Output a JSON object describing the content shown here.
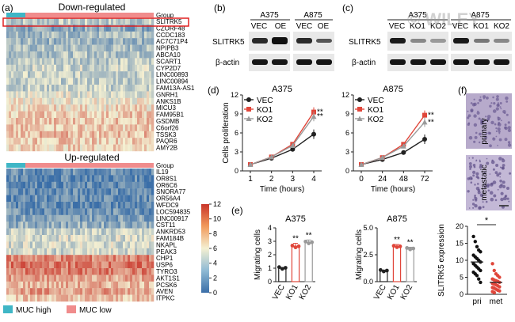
{
  "panels": {
    "a": {
      "letter": "(a)"
    },
    "b": {
      "letter": "(b)"
    },
    "c": {
      "letter": "(c)"
    },
    "d": {
      "letter": "(d)"
    },
    "e": {
      "letter": "(e)"
    },
    "f": {
      "letter": "(f)"
    }
  },
  "watermark": "© WILEY",
  "heatmap": {
    "down_title": "Down-regulated",
    "up_title": "Up-regulated",
    "group_label": "Group",
    "down_genes": [
      "SLITRK5",
      "CZORF48",
      "CCDC183",
      "AC7C71P4",
      "NPIPB3",
      "ABCA10",
      "SCART1",
      "CYP2D7",
      "LINC00893",
      "LINC00894",
      "FAM13A-AS1",
      "GNRH1",
      "ANKS1B",
      "MICU3",
      "FAM95B1",
      "GSDMB",
      "C6orf26",
      "TSSK3",
      "PAQR6",
      "AMY2B"
    ],
    "up_genes": [
      "IL19",
      "OR8S1",
      "OR6C6",
      "SNORA77",
      "OR56A4",
      "WFDC9",
      "LOC594835",
      "LINC00917",
      "CST11",
      "ANKRD53",
      "FAM184B",
      "NKAPL",
      "PEAK3",
      "CHP1",
      "USP6",
      "TYRO3",
      "AKT1S1",
      "PCSK6",
      "AVEN",
      "ITPKC"
    ],
    "colorbar_ticks": [
      "12",
      "10",
      "8",
      "6",
      "4",
      "2",
      "0"
    ],
    "legend": [
      {
        "label": "MUC high",
        "color": "#3fb6c6"
      },
      {
        "label": "MUC low",
        "color": "#f08c8c"
      }
    ],
    "colors": {
      "low": "#3a6ea8",
      "mid": "#f4f0d2",
      "high": "#c9352a"
    }
  },
  "blots": {
    "b": {
      "cells": [
        "A375",
        "A875"
      ],
      "lanes": [
        "VEC",
        "OE",
        "VEC",
        "OE"
      ],
      "rows": [
        "SLITRK5",
        "β-actin"
      ]
    },
    "c": {
      "cells": [
        "A375",
        "A875"
      ],
      "lanes": [
        "VEC",
        "KO1",
        "KO2",
        "VEC",
        "KO1",
        "KO2"
      ],
      "rows": [
        "SLITRK5",
        "β-actin"
      ]
    }
  },
  "chart_data": [
    {
      "type": "line",
      "title": "A375",
      "ylabel": "Cells proliferation",
      "xlabel": "Time (hours)",
      "x": [
        "1",
        "2",
        "3",
        "4"
      ],
      "ylim": [
        0,
        12
      ],
      "yticks": [
        "0",
        "3",
        "6",
        "9",
        "12"
      ],
      "series": [
        {
          "name": "VEC",
          "color": "#222222",
          "marker": "circle",
          "values": [
            1.0,
            2.0,
            3.4,
            5.8
          ]
        },
        {
          "name": "KO1",
          "color": "#e0463a",
          "marker": "square",
          "values": [
            1.0,
            2.2,
            4.2,
            9.3
          ]
        },
        {
          "name": "KO2",
          "color": "#9a9a9a",
          "marker": "triangle",
          "values": [
            1.0,
            2.2,
            4.0,
            8.6
          ]
        }
      ],
      "annotations": [
        "**",
        "**"
      ]
    },
    {
      "type": "line",
      "title": "A875",
      "ylabel": "",
      "xlabel": "Time (hours)",
      "x": [
        "0",
        "24",
        "48",
        "72"
      ],
      "ylim": [
        0,
        12
      ],
      "yticks": [
        "0",
        "3",
        "6",
        "9",
        "12"
      ],
      "series": [
        {
          "name": "VEC",
          "color": "#222222",
          "marker": "circle",
          "values": [
            1.0,
            1.8,
            2.9,
            5.0
          ]
        },
        {
          "name": "KO1",
          "color": "#e0463a",
          "marker": "square",
          "values": [
            1.0,
            2.1,
            4.2,
            8.8
          ]
        },
        {
          "name": "KO2",
          "color": "#9a9a9a",
          "marker": "triangle",
          "values": [
            1.0,
            2.1,
            3.9,
            7.7
          ]
        }
      ],
      "annotations": [
        "**",
        "**"
      ]
    },
    {
      "type": "bar",
      "title": "A375",
      "ylabel": "Migrating cells",
      "categories": [
        "VEC",
        "KO1",
        "KO2"
      ],
      "values": [
        1.0,
        2.6,
        2.9
      ],
      "errors": [
        0.05,
        0.25,
        0.2
      ],
      "ylim": [
        0,
        4
      ],
      "yticks": [
        "0",
        "1",
        "2",
        "3",
        "4"
      ],
      "colors": [
        "#222222",
        "#e0463a",
        "#9a9a9a"
      ],
      "annotations": [
        "",
        "**",
        "**"
      ]
    },
    {
      "type": "bar",
      "title": "A875",
      "ylabel": "Migrating cells",
      "categories": [
        "VEC",
        "KO1",
        "KO2"
      ],
      "values": [
        1.0,
        3.25,
        3.05
      ],
      "errors": [
        0.05,
        0.2,
        0.15
      ],
      "ylim": [
        0,
        5
      ],
      "yticks": [
        "0.0",
        "2.5",
        "5.0"
      ],
      "colors": [
        "#222222",
        "#e0463a",
        "#9a9a9a"
      ],
      "annotations": [
        "",
        "**",
        "**"
      ]
    },
    {
      "type": "scatter",
      "ylabel": "SLITRK5 expression",
      "categories": [
        "pri",
        "met"
      ],
      "ylim": [
        0,
        20
      ],
      "yticks": [
        "0",
        "5",
        "10",
        "15",
        "20"
      ],
      "series": [
        {
          "name": "pri",
          "color": "#111111",
          "mean": 9.5,
          "values": [
            17,
            15.5,
            14,
            13,
            12.5,
            11.5,
            11,
            10.5,
            10,
            9.5,
            9,
            8.5,
            8,
            7.5,
            7,
            6.5,
            6,
            5.5,
            4.5,
            3.5
          ]
        },
        {
          "name": "met",
          "color": "#e0463a",
          "mean": 3.5,
          "values": [
            9,
            7,
            6,
            5.5,
            5,
            4.5,
            4.2,
            4,
            3.8,
            3.5,
            3.2,
            3,
            2.8,
            2.5,
            2.2,
            2,
            1.8,
            1.5,
            1.2,
            1,
            0.8,
            0.5
          ]
        }
      ],
      "annotations": [
        "*"
      ]
    }
  ],
  "histology": {
    "labels": [
      "primary",
      "metastatic"
    ]
  }
}
